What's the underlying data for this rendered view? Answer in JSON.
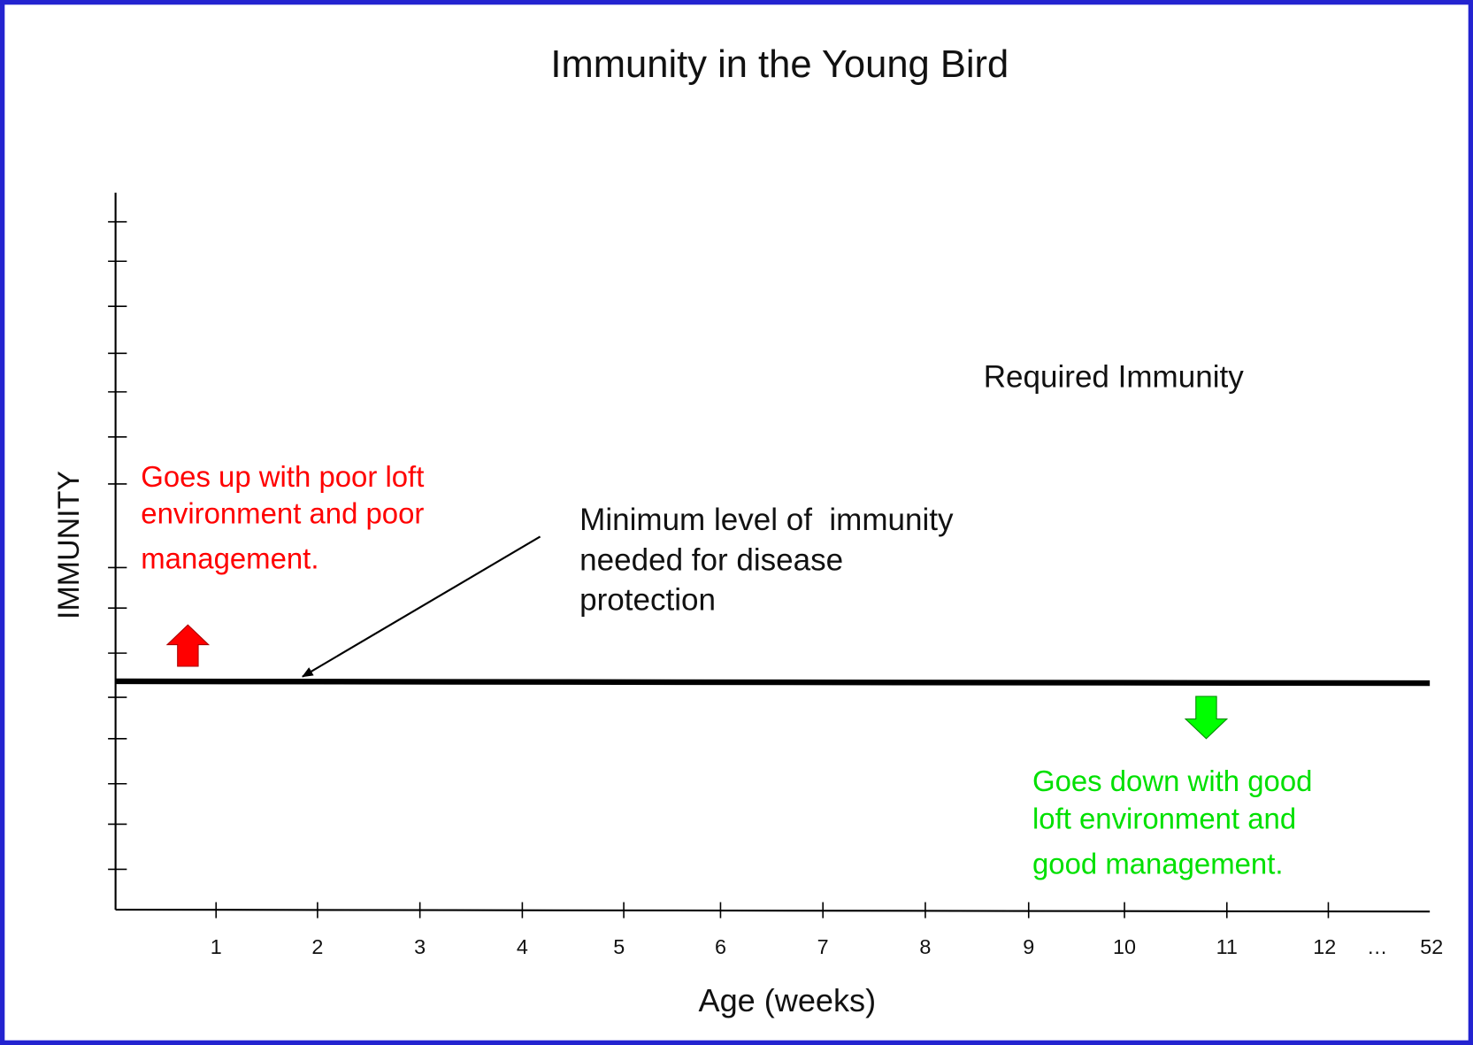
{
  "title": "Immunity in the Young Bird",
  "x_axis": {
    "label": "Age (weeks)",
    "ticks": [
      "1",
      "2",
      "3",
      "4",
      "5",
      "6",
      "7",
      "8",
      "9",
      "10",
      "11",
      "12",
      "…",
      "52"
    ]
  },
  "y_axis": {
    "label": "IMMUNITY"
  },
  "annotations": {
    "required": "Required Immunity",
    "minimum": [
      "Minimum level of  immunity",
      "needed for disease",
      "protection"
    ],
    "up": [
      "Goes up with poor loft",
      "environment and poor",
      "management."
    ],
    "down": [
      "Goes down with good",
      "loft environment and",
      "good management."
    ]
  }
}
